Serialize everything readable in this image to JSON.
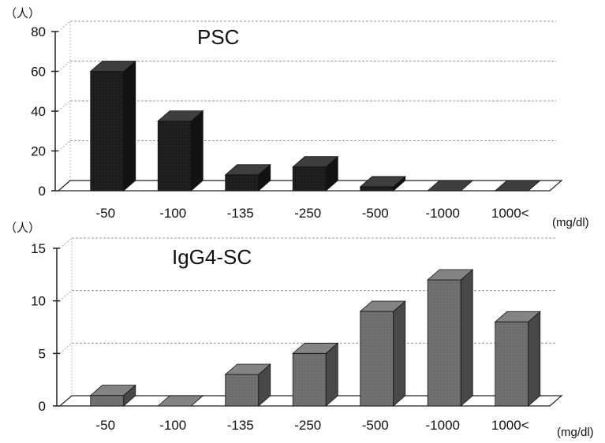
{
  "chart_data": [
    {
      "type": "bar",
      "title": "PSC",
      "ylabel": "（人）",
      "xlabel": "(mg/dl)",
      "categories": [
        "-50",
        "-100",
        "-135",
        "-250",
        "-500",
        "-1000",
        "1000<"
      ],
      "series": [
        {
          "values": [
            60,
            35,
            8,
            12,
            2,
            0,
            0
          ]
        }
      ],
      "yticks": [
        "0",
        "20",
        "40",
        "60",
        "80"
      ],
      "ylim": [
        0,
        80
      ],
      "grid": true,
      "style": "3d",
      "bar_color": "#1c1c1c"
    },
    {
      "type": "bar",
      "title": "IgG4-SC",
      "ylabel": "（人）",
      "xlabel": "(mg/dl)",
      "categories": [
        "-50",
        "-100",
        "-135",
        "-250",
        "-500",
        "-1000",
        "1000<"
      ],
      "series": [
        {
          "values": [
            1,
            0,
            3,
            5,
            9,
            12,
            8
          ]
        }
      ],
      "yticks": [
        "0",
        "5",
        "10",
        "15"
      ],
      "ylim": [
        0,
        15
      ],
      "grid": true,
      "style": "3d",
      "bar_color": "#6e6e6e"
    }
  ]
}
